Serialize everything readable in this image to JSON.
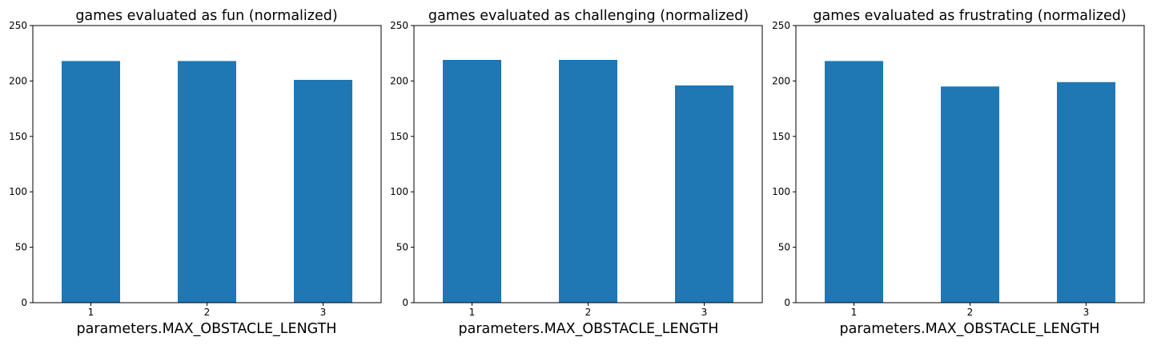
{
  "chart_data": [
    {
      "type": "bar",
      "title": "games evaluated as fun (normalized)",
      "xlabel": "parameters.MAX_OBSTACLE_LENGTH",
      "ylabel": "",
      "categories": [
        "1",
        "2",
        "3"
      ],
      "values": [
        218,
        218,
        201
      ],
      "ylim": [
        0,
        250
      ],
      "yticks": [
        "0",
        "50",
        "100",
        "150",
        "200",
        "250"
      ],
      "grid": false,
      "bar_color": "#1f77b4"
    },
    {
      "type": "bar",
      "title": "games evaluated as challenging (normalized)",
      "xlabel": "parameters.MAX_OBSTACLE_LENGTH",
      "ylabel": "",
      "categories": [
        "1",
        "2",
        "3"
      ],
      "values": [
        219,
        219,
        196
      ],
      "ylim": [
        0,
        250
      ],
      "yticks": [
        "0",
        "50",
        "100",
        "150",
        "200",
        "250"
      ],
      "grid": false,
      "bar_color": "#1f77b4"
    },
    {
      "type": "bar",
      "title": "games evaluated as frustrating (normalized)",
      "xlabel": "parameters.MAX_OBSTACLE_LENGTH",
      "ylabel": "",
      "categories": [
        "1",
        "2",
        "3"
      ],
      "values": [
        218,
        195,
        199
      ],
      "ylim": [
        0,
        250
      ],
      "yticks": [
        "0",
        "50",
        "100",
        "150",
        "200",
        "250"
      ],
      "grid": false,
      "bar_color": "#1f77b4"
    }
  ]
}
